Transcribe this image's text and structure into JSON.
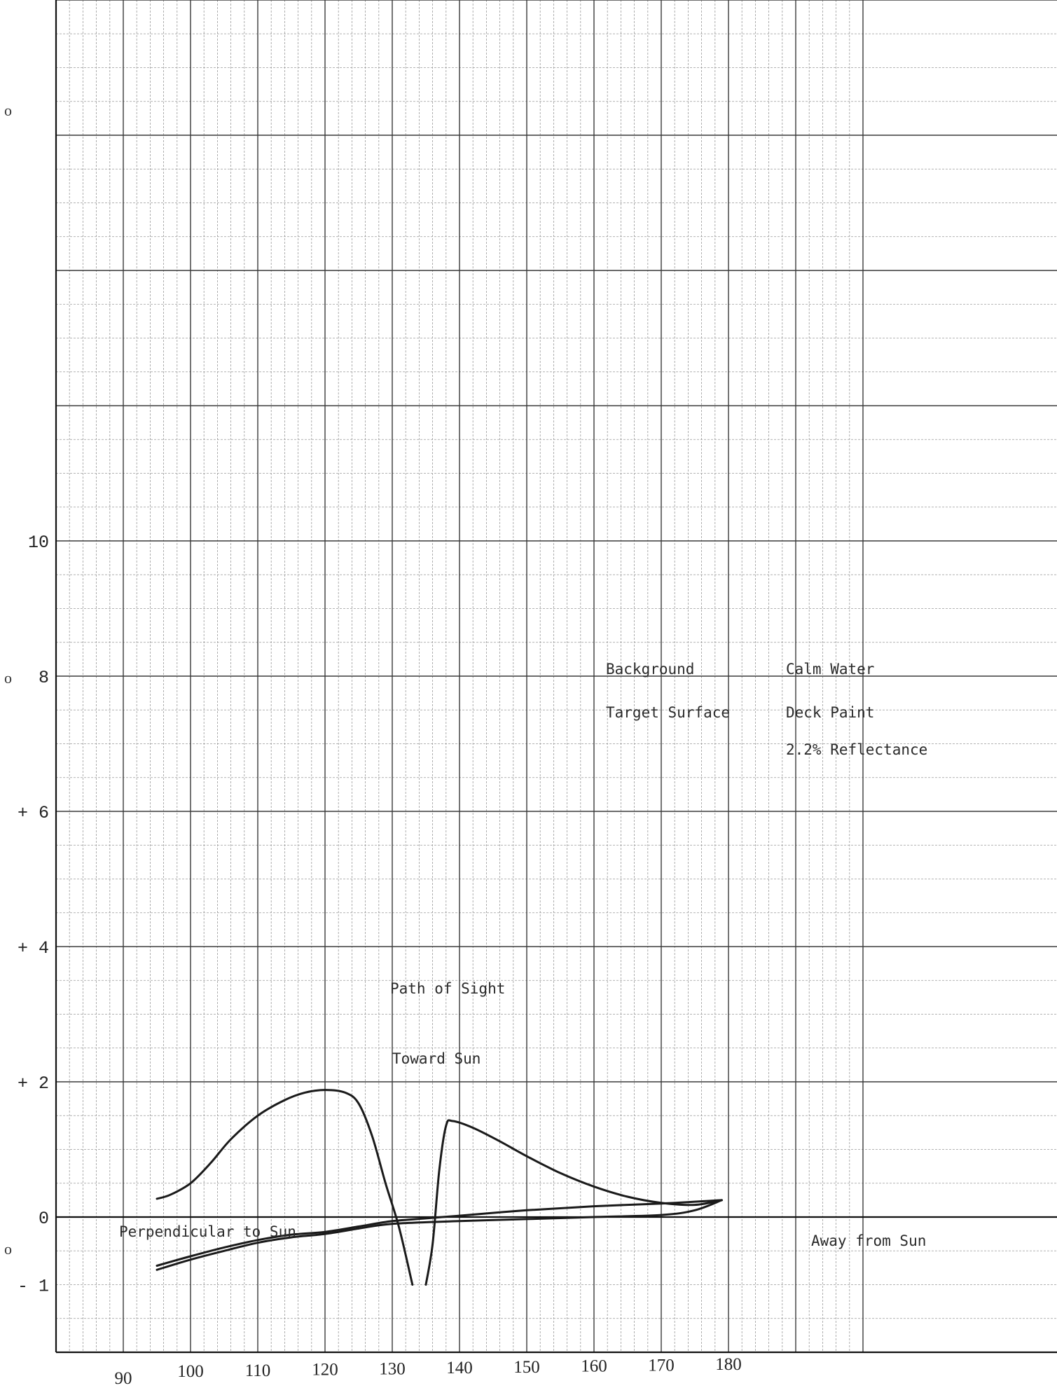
{
  "chart_data": {
    "type": "line",
    "title": "",
    "xlabel": "",
    "ylabel": "",
    "xlim": [
      80,
      200
    ],
    "ylim": [
      -2,
      18
    ],
    "grid": true,
    "x_ticks": [
      {
        "value": 90,
        "label": "90"
      },
      {
        "value": 100,
        "label": "100"
      },
      {
        "value": 110,
        "label": "110"
      },
      {
        "value": 120,
        "label": "120"
      },
      {
        "value": 130,
        "label": "130"
      },
      {
        "value": 140,
        "label": "140"
      },
      {
        "value": 150,
        "label": "150"
      },
      {
        "value": 160,
        "label": "160"
      },
      {
        "value": 170,
        "label": "170"
      },
      {
        "value": 180,
        "label": "180"
      }
    ],
    "y_ticks": [
      {
        "value": 10,
        "label": "10"
      },
      {
        "value": 8,
        "label": "8"
      },
      {
        "value": 6,
        "label": "+ 6"
      },
      {
        "value": 4,
        "label": "+ 4"
      },
      {
        "value": 2,
        "label": "+ 2"
      },
      {
        "value": 0,
        "label": "0"
      },
      {
        "value": -1,
        "label": "- 1"
      }
    ],
    "series": [
      {
        "name": "Toward Sun",
        "color": "#1a1a1a",
        "points": [
          [
            95,
            0.27
          ],
          [
            97,
            0.33
          ],
          [
            100,
            0.5
          ],
          [
            103,
            0.8
          ],
          [
            106,
            1.15
          ],
          [
            110,
            1.5
          ],
          [
            114,
            1.73
          ],
          [
            117,
            1.84
          ],
          [
            120,
            1.88
          ],
          [
            123,
            1.84
          ],
          [
            125,
            1.68
          ],
          [
            127,
            1.2
          ],
          [
            129,
            0.5
          ],
          [
            131,
            -0.15
          ],
          [
            133,
            -1.0
          ]
        ]
      },
      {
        "name": "Toward Sun",
        "color": "#1a1a1a",
        "points": [
          [
            135,
            -1.0
          ],
          [
            136,
            -0.4
          ],
          [
            137,
            0.7
          ],
          [
            138,
            1.35
          ],
          [
            139,
            1.42
          ],
          [
            142,
            1.32
          ],
          [
            146,
            1.12
          ],
          [
            150,
            0.9
          ],
          [
            155,
            0.65
          ],
          [
            160,
            0.45
          ],
          [
            165,
            0.3
          ],
          [
            170,
            0.21
          ],
          [
            175,
            0.18
          ],
          [
            179,
            0.25
          ]
        ]
      },
      {
        "name": "Perpendicular to Sun",
        "color": "#1a1a1a",
        "points": [
          [
            95,
            -0.72
          ],
          [
            100,
            -0.58
          ],
          [
            105,
            -0.45
          ],
          [
            110,
            -0.34
          ],
          [
            115,
            -0.26
          ],
          [
            120,
            -0.22
          ],
          [
            125,
            -0.14
          ],
          [
            130,
            -0.06
          ],
          [
            135,
            -0.02
          ],
          [
            140,
            0.02
          ],
          [
            150,
            0.1
          ],
          [
            160,
            0.16
          ],
          [
            170,
            0.2
          ],
          [
            179,
            0.25
          ]
        ]
      },
      {
        "name": "Away from Sun",
        "color": "#1a1a1a",
        "points": [
          [
            95,
            -0.78
          ],
          [
            100,
            -0.63
          ],
          [
            105,
            -0.5
          ],
          [
            110,
            -0.38
          ],
          [
            115,
            -0.3
          ],
          [
            120,
            -0.25
          ],
          [
            125,
            -0.17
          ],
          [
            130,
            -0.1
          ],
          [
            140,
            -0.06
          ],
          [
            150,
            -0.03
          ],
          [
            160,
            0.0
          ],
          [
            170,
            0.03
          ],
          [
            175,
            0.1
          ],
          [
            179,
            0.25
          ]
        ]
      }
    ],
    "annotations": {
      "background_label": "Background",
      "background_value": "Calm Water",
      "target_label": "Target Surface",
      "target_value": "Deck Paint",
      "reflectance": "2.2% Reflectance",
      "path_of_sight": "Path of Sight",
      "toward_sun": "Toward Sun",
      "perpendicular": "Perpendicular to Sun",
      "away": "Away from Sun"
    }
  },
  "margin_marks": [
    "o",
    "o",
    "o"
  ]
}
